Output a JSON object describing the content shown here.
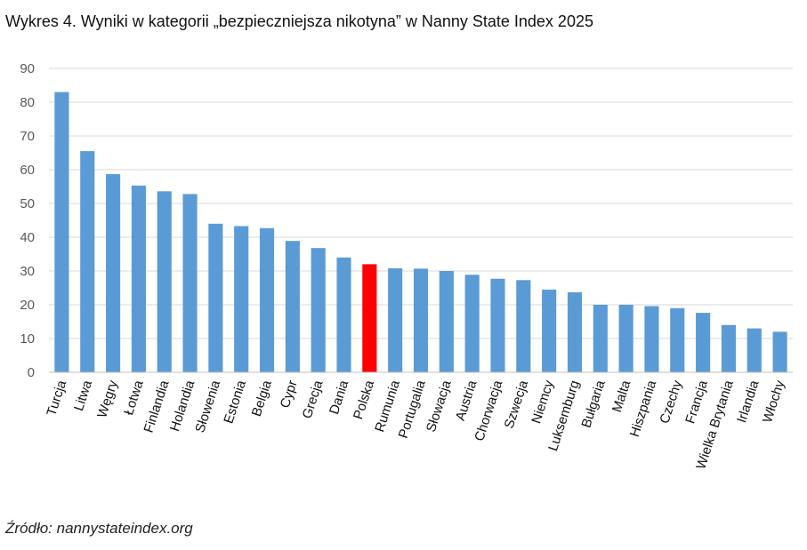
{
  "chart_data": {
    "type": "bar",
    "title": "Wykres 4. Wyniki w kategorii „bezpieczniejsza nikotyna” w Nanny State Index 2025",
    "source": "Źródło: nannystateindex.org",
    "categories": [
      "Turcja",
      "Litwa",
      "Węgry",
      "Łotwa",
      "Finlandia",
      "Holandia",
      "Słowenia",
      "Estonia",
      "Belgia",
      "Cypr",
      "Grecja",
      "Dania",
      "Polska",
      "Rumunia",
      "Portugalia",
      "Słowacja",
      "Austria",
      "Chorwacja",
      "Szwecja",
      "Niemcy",
      "Luksemburg",
      "Bułgaria",
      "Malta",
      "Hiszpania",
      "Czechy",
      "Francja",
      "Wielka Brytania",
      "Irlandia",
      "Włochy"
    ],
    "values": [
      83,
      65.5,
      58.7,
      55.3,
      53.6,
      52.8,
      44,
      43.3,
      42.7,
      38.9,
      36.8,
      34,
      32,
      30.8,
      30.7,
      30,
      28.9,
      27.7,
      27.3,
      24.5,
      23.7,
      20,
      20,
      19.6,
      19,
      17.6,
      14,
      13,
      12
    ],
    "highlight_category": "Polska",
    "colors": {
      "bar": "#5b9bd5",
      "highlight": "#ff0000",
      "grid": "#d9d9d9"
    },
    "ylim": [
      0,
      90
    ],
    "yticks": [
      0,
      10,
      20,
      30,
      40,
      50,
      60,
      70,
      80,
      90
    ],
    "grid": true,
    "legend": "none"
  }
}
